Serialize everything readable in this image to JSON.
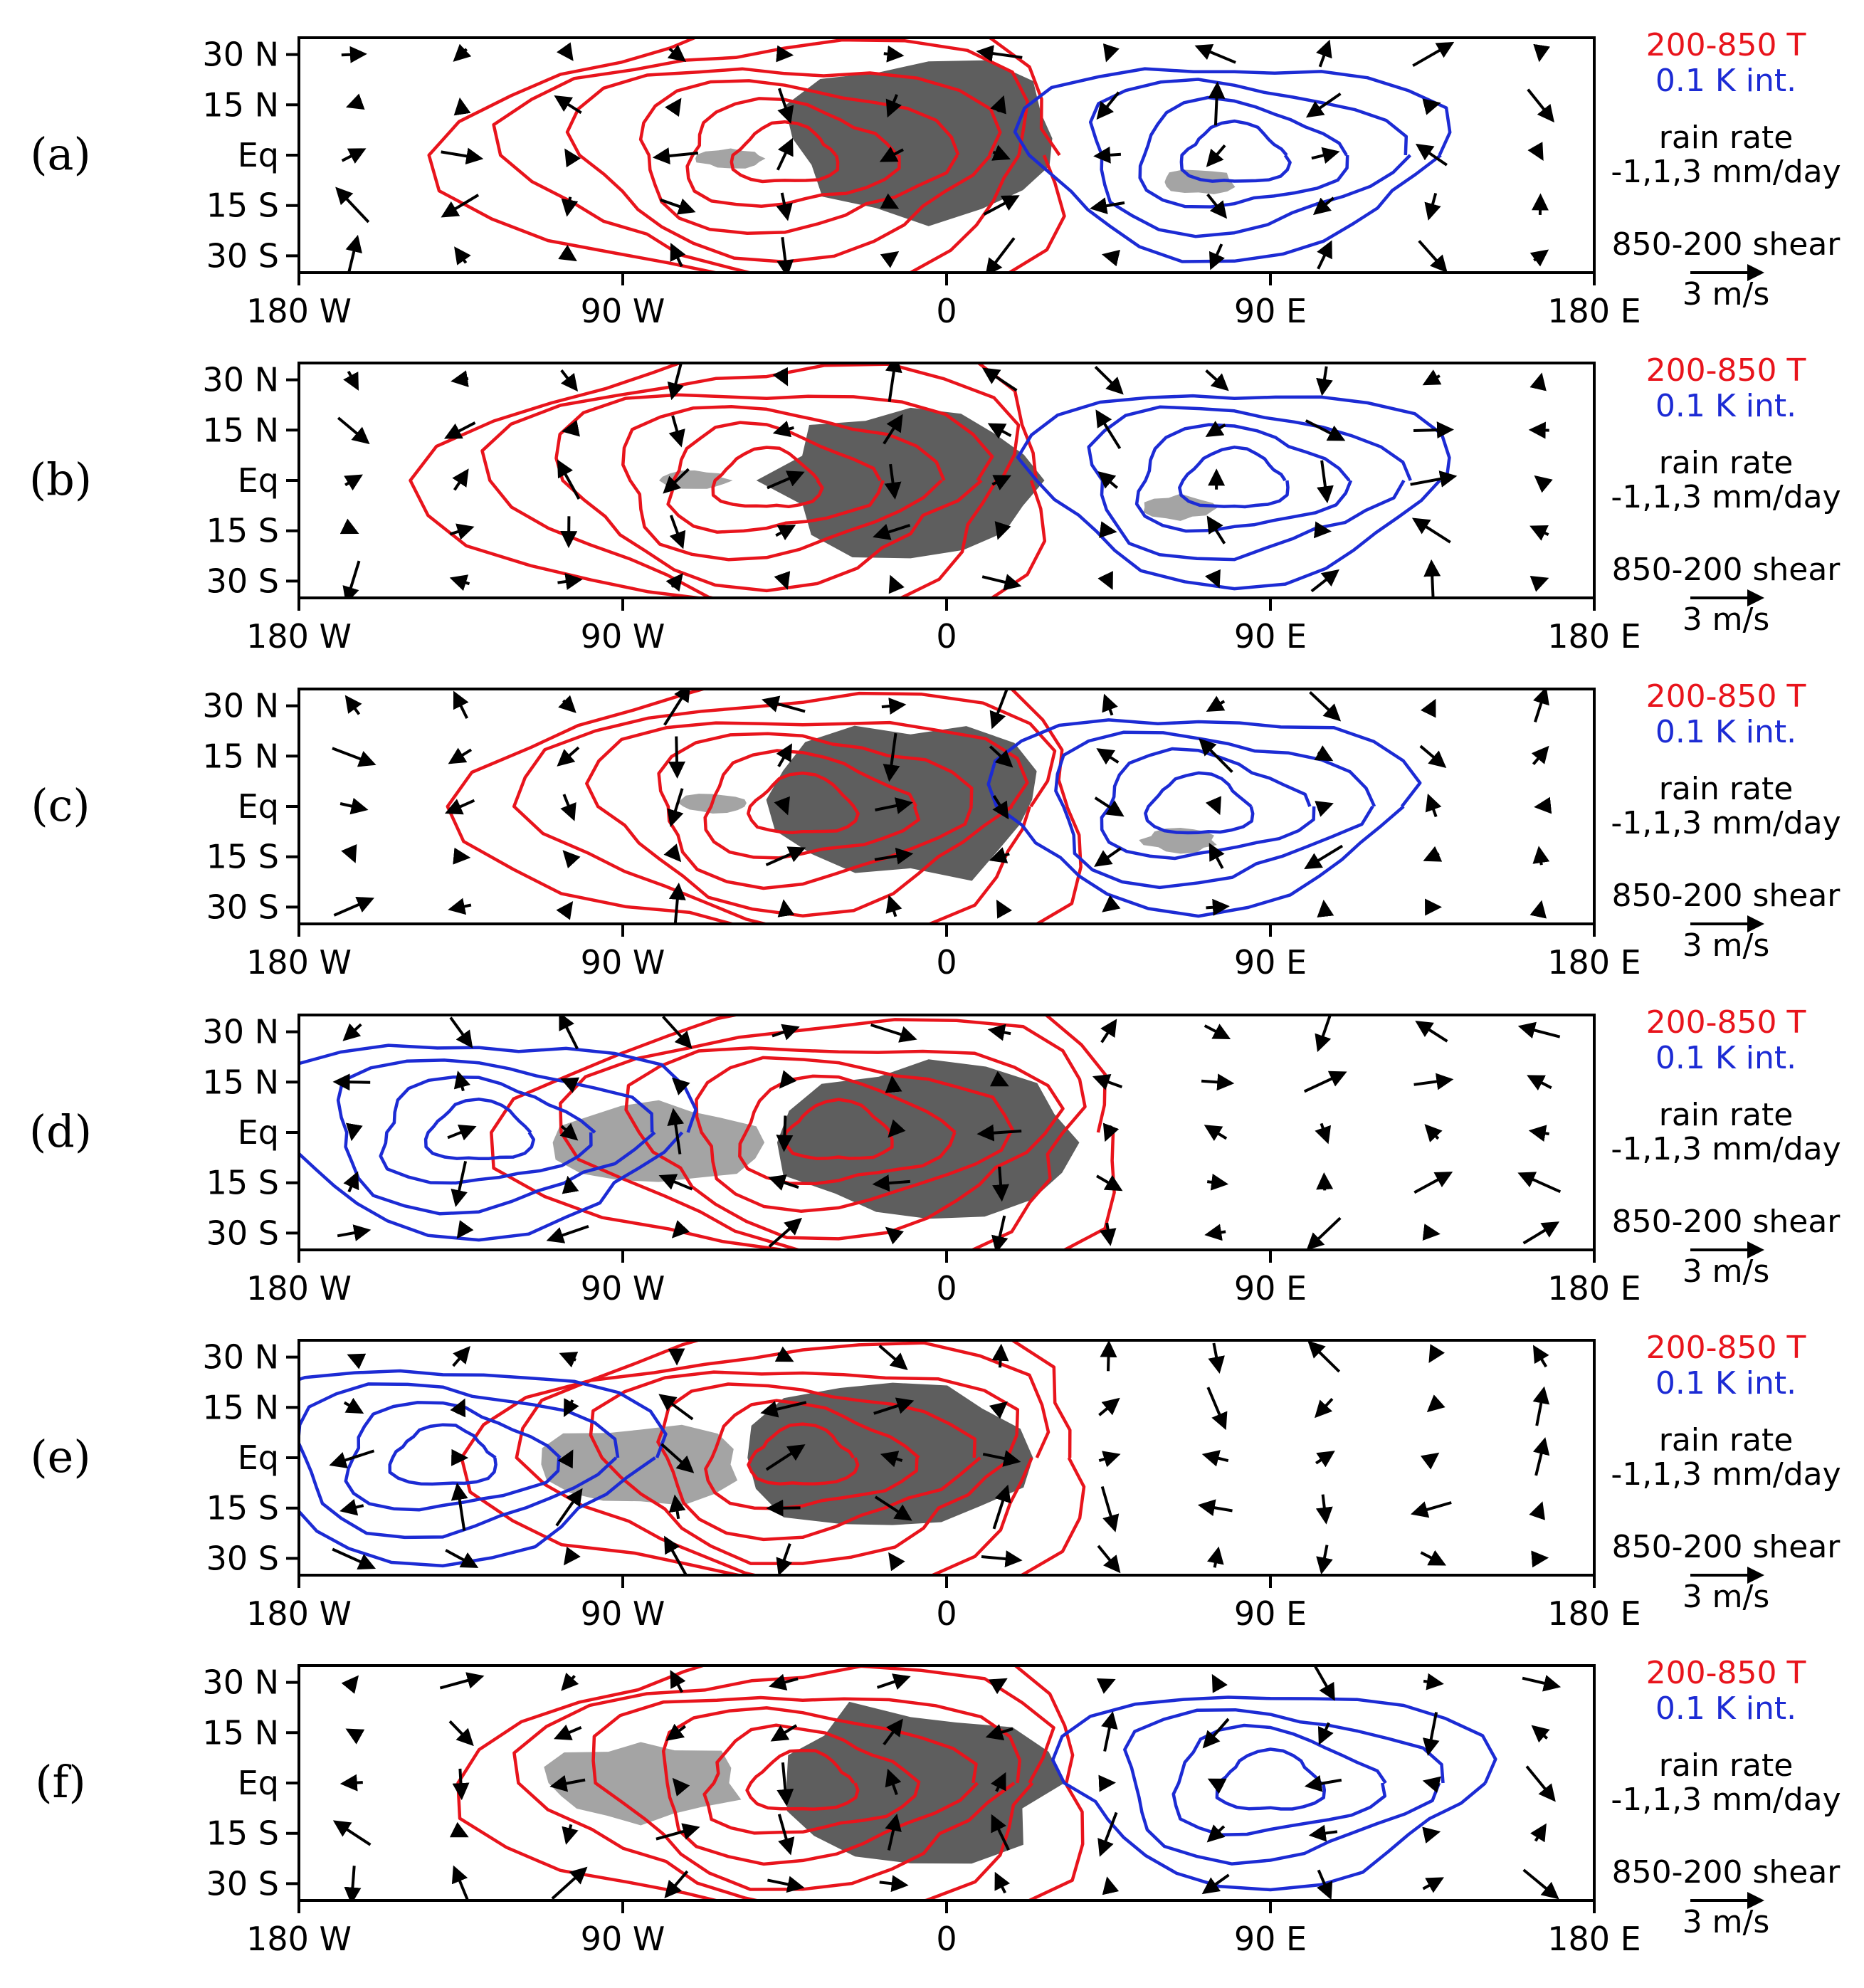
{
  "figure": {
    "colors": {
      "positive_contour": "#e8141c",
      "negative_contour": "#1c2bd4",
      "heavy_rain": "#5e5e5e",
      "light_rain": "#a4a4a4",
      "vectors": "#000000",
      "frame": "#000000"
    },
    "legend": {
      "temperature_line1": "200-850 T",
      "temperature_line2": "0.1 K int.",
      "rain_line1": "rain rate",
      "rain_line2": "-1,1,3 mm/day",
      "shear_line1": "850-200 shear",
      "shear_line2": "3 m/s"
    }
  },
  "chart_data": [
    {
      "panel": "(a)",
      "type": "contour-vector map",
      "title": "",
      "x_ticks": [
        "180 W",
        "90 W",
        "0",
        "90 E",
        "180 E"
      ],
      "y_ticks": [
        "30 N",
        "15 N",
        "Eq",
        "15 S",
        "30 S"
      ],
      "xlim": [
        -180,
        180
      ],
      "ylim": [
        -35,
        35
      ],
      "contour_field": "200-850 T",
      "contour_interval_K": 0.1,
      "positive_center_lon": -45,
      "negative_center_lon": 80,
      "rain_heavy_center": [
        -5,
        5
      ],
      "rain_light_center": [
        -60,
        -1
      ],
      "rain_light2_center": [
        70,
        -8
      ],
      "shear_vector_reference_ms": 3
    },
    {
      "panel": "(b)",
      "type": "contour-vector map",
      "title": "",
      "x_ticks": [
        "180 W",
        "90 W",
        "0",
        "90 E",
        "180 E"
      ],
      "y_ticks": [
        "30 N",
        "15 N",
        "Eq",
        "15 S",
        "30 S"
      ],
      "xlim": [
        -180,
        180
      ],
      "ylim": [
        -35,
        35
      ],
      "contour_field": "200-850 T",
      "contour_interval_K": 0.1,
      "positive_center_lon": -50,
      "negative_center_lon": 80,
      "rain_heavy_center": [
        -10,
        0
      ],
      "rain_light_center": [
        -70,
        0
      ],
      "rain_light2_center": [
        65,
        -8
      ],
      "shear_vector_reference_ms": 3
    },
    {
      "panel": "(c)",
      "type": "contour-vector map",
      "title": "",
      "x_ticks": [
        "180 W",
        "90 W",
        "0",
        "90 E",
        "180 E"
      ],
      "y_ticks": [
        "30 N",
        "15 N",
        "Eq",
        "15 S",
        "30 S"
      ],
      "xlim": [
        -180,
        180
      ],
      "ylim": [
        -35,
        35
      ],
      "contour_field": "200-850 T",
      "contour_interval_K": 0.1,
      "positive_center_lon": -40,
      "negative_center_lon": 70,
      "rain_heavy_center": [
        -10,
        2
      ],
      "rain_light_center": [
        -65,
        1
      ],
      "rain_light2_center": [
        65,
        -10
      ],
      "shear_vector_reference_ms": 3
    },
    {
      "panel": "(d)",
      "type": "contour-vector map",
      "title": "",
      "x_ticks": [
        "180 W",
        "90 W",
        "0",
        "90 E",
        "180 E"
      ],
      "y_ticks": [
        "30 N",
        "15 N",
        "Eq",
        "15 S",
        "30 S"
      ],
      "xlim": [
        -180,
        180
      ],
      "ylim": [
        -35,
        35
      ],
      "contour_field": "200-850 T",
      "contour_interval_K": 0.1,
      "positive_center_lon": -30,
      "negative_center_lon": -130,
      "rain_heavy_center": [
        -5,
        -3
      ],
      "rain_light_center": [
        -80,
        -3
      ],
      "shear_vector_reference_ms": 3
    },
    {
      "panel": "(e)",
      "type": "contour-vector map",
      "title": "",
      "x_ticks": [
        "180 W",
        "90 W",
        "0",
        "90 E",
        "180 E"
      ],
      "y_ticks": [
        "30 N",
        "15 N",
        "Eq",
        "15 S",
        "30 S"
      ],
      "xlim": [
        -180,
        180
      ],
      "ylim": [
        -35,
        35
      ],
      "contour_field": "200-850 T",
      "contour_interval_K": 0.1,
      "positive_center_lon": -40,
      "negative_center_lon": -140,
      "rain_heavy_center": [
        -15,
        0
      ],
      "rain_light_center": [
        -85,
        -2
      ],
      "shear_vector_reference_ms": 3
    },
    {
      "panel": "(f)",
      "type": "contour-vector map",
      "title": "",
      "x_ticks": [
        "180 W",
        "90 W",
        "0",
        "90 E",
        "180 E"
      ],
      "y_ticks": [
        "30 N",
        "15 N",
        "Eq",
        "15 S",
        "30 S"
      ],
      "xlim": [
        -180,
        180
      ],
      "ylim": [
        -35,
        35
      ],
      "contour_field": "200-850 T",
      "contour_interval_K": 0.1,
      "positive_center_lon": -40,
      "negative_center_lon": 90,
      "rain_heavy_center": [
        -10,
        0
      ],
      "rain_light_center": [
        -85,
        0
      ],
      "shear_vector_reference_ms": 3
    }
  ]
}
